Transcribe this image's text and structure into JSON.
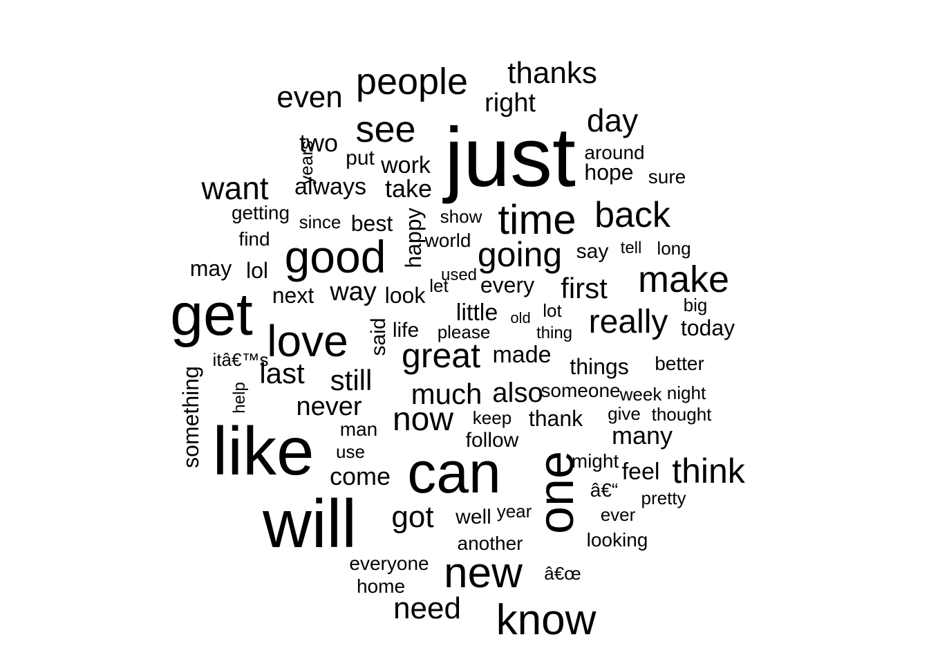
{
  "text_color": "#000000",
  "background_color": "#ffffff",
  "words": [
    {
      "text": "just",
      "v": false
    },
    {
      "text": "like",
      "v": false
    },
    {
      "text": "will",
      "v": false
    },
    {
      "text": "get",
      "v": false
    },
    {
      "text": "can",
      "v": false
    },
    {
      "text": "one",
      "v": true
    },
    {
      "text": "good",
      "v": false
    },
    {
      "text": "love",
      "v": false
    },
    {
      "text": "new",
      "v": false
    },
    {
      "text": "know",
      "v": false
    },
    {
      "text": "time",
      "v": false
    },
    {
      "text": "people",
      "v": false
    },
    {
      "text": "see",
      "v": false
    },
    {
      "text": "make",
      "v": false
    },
    {
      "text": "back",
      "v": false
    },
    {
      "text": "going",
      "v": false
    },
    {
      "text": "great",
      "v": false
    },
    {
      "text": "think",
      "v": false
    },
    {
      "text": "really",
      "v": false
    },
    {
      "text": "now",
      "v": false
    },
    {
      "text": "want",
      "v": false
    },
    {
      "text": "day",
      "v": false
    },
    {
      "text": "thanks",
      "v": false
    },
    {
      "text": "even",
      "v": false
    },
    {
      "text": "much",
      "v": false
    },
    {
      "text": "first",
      "v": false
    },
    {
      "text": "got",
      "v": false
    },
    {
      "text": "need",
      "v": false
    },
    {
      "text": "also",
      "v": false
    },
    {
      "text": "last",
      "v": false
    },
    {
      "text": "still",
      "v": false
    },
    {
      "text": "never",
      "v": false
    },
    {
      "text": "come",
      "v": false
    },
    {
      "text": "right",
      "v": false
    },
    {
      "text": "many",
      "v": false
    },
    {
      "text": "work",
      "v": false
    },
    {
      "text": "take",
      "v": false
    },
    {
      "text": "happy",
      "v": true
    },
    {
      "text": "two",
      "v": false
    },
    {
      "text": "way",
      "v": false
    },
    {
      "text": "things",
      "v": false
    },
    {
      "text": "feel",
      "v": false
    },
    {
      "text": "always",
      "v": false
    },
    {
      "text": "little",
      "v": false
    },
    {
      "text": "today",
      "v": false
    },
    {
      "text": "best",
      "v": false
    },
    {
      "text": "made",
      "v": false
    },
    {
      "text": "something",
      "v": true
    },
    {
      "text": "every",
      "v": false
    },
    {
      "text": "hope",
      "v": false
    },
    {
      "text": "look",
      "v": false
    },
    {
      "text": "next",
      "v": false
    },
    {
      "text": "may",
      "v": false
    },
    {
      "text": "lol",
      "v": false
    },
    {
      "text": "say",
      "v": false
    },
    {
      "text": "said",
      "v": true
    },
    {
      "text": "life",
      "v": false
    },
    {
      "text": "well",
      "v": false
    },
    {
      "text": "thank",
      "v": false
    },
    {
      "text": "follow",
      "v": false
    },
    {
      "text": "getting",
      "v": false
    },
    {
      "text": "find",
      "v": false
    },
    {
      "text": "better",
      "v": false
    },
    {
      "text": "everyone",
      "v": false
    },
    {
      "text": "home",
      "v": false
    },
    {
      "text": "another",
      "v": false
    },
    {
      "text": "looking",
      "v": false
    },
    {
      "text": "around",
      "v": false
    },
    {
      "text": "show",
      "v": false
    },
    {
      "text": "please",
      "v": false
    },
    {
      "text": "someone",
      "v": false
    },
    {
      "text": "keep",
      "v": false
    },
    {
      "text": "might",
      "v": false
    },
    {
      "text": "big",
      "v": false
    },
    {
      "text": "sure",
      "v": false
    },
    {
      "text": "long",
      "v": false
    },
    {
      "text": "put",
      "v": false
    },
    {
      "text": "let",
      "v": false
    },
    {
      "text": "years",
      "v": true
    },
    {
      "text": "since",
      "v": false
    },
    {
      "text": "used",
      "v": false
    },
    {
      "text": "lot",
      "v": false
    },
    {
      "text": "thing",
      "v": false
    },
    {
      "text": "week",
      "v": false
    },
    {
      "text": "night",
      "v": false
    },
    {
      "text": "give",
      "v": false
    },
    {
      "text": "thought",
      "v": false
    },
    {
      "text": "man",
      "v": false
    },
    {
      "text": "use",
      "v": false
    },
    {
      "text": "pretty",
      "v": false
    },
    {
      "text": "ever",
      "v": false
    },
    {
      "text": "year",
      "v": false
    },
    {
      "text": "tell",
      "v": false
    },
    {
      "text": "old",
      "v": false
    },
    {
      "text": "help",
      "v": true
    },
    {
      "text": "world",
      "v": false
    },
    {
      "text": "â€“",
      "v": false
    },
    {
      "text": "â€œ",
      "v": false
    },
    {
      "text": "itâ€™s",
      "v": false
    },
    {
      "text": "…",
      "v": false
    }
  ]
}
